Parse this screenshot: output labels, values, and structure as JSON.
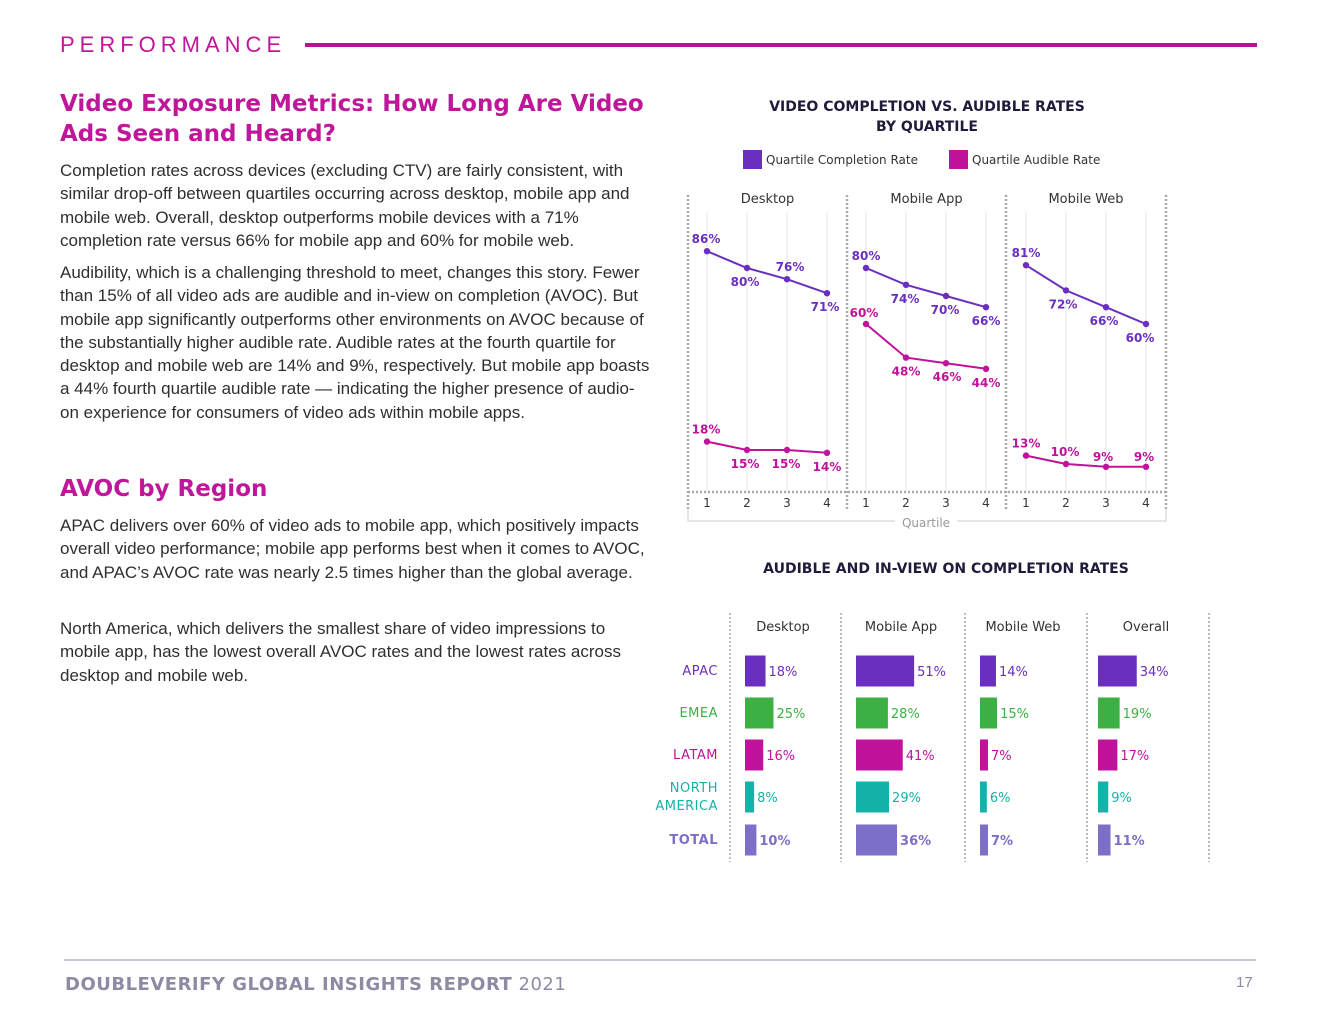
{
  "header": {
    "label": "PERFORMANCE"
  },
  "section1": {
    "title_line1": "Video Exposure Metrics: How Long Are Video",
    "title_line2": "Ads Seen and Heard?",
    "para1": "Completion rates across devices (excluding CTV) are fairly consistent, with similar drop-off between quartiles occurring across desktop, mobile app and mobile web. Overall, desktop outperforms mobile devices with a 71% completion rate versus 66% for mobile app and 60% for mobile web.",
    "para2": "Audibility, which is a challenging threshold to meet, changes this story. Fewer than 15% of all video ads are audible and in-view on completion (AVOC). But mobile app significantly outperforms other environments on AVOC because of the substantially higher audible rate. Audible rates at the fourth quartile for desktop and mobile web are 14% and 9%, respectively. But mobile app boasts a 44% fourth quartile audible rate — indicating the higher presence of audio-on experience for consumers of video ads within mobile apps."
  },
  "section2": {
    "title": "AVOC by Region",
    "para1": "APAC delivers over 60% of video ads to mobile app, which positively impacts overall video performance; mobile app performs best when it comes to AVOC, and APAC’s AVOC rate was nearly 2.5 times higher than the global average.",
    "para2": "North America, which delivers the smallest share of video impressions to mobile app, has the lowest overall AVOC rates and the lowest rates across desktop and mobile web."
  },
  "footer": {
    "title_bold": "DOUBLEVERIFY GLOBAL INSIGHTS REPORT",
    "year": " 2021",
    "page": "17"
  },
  "colors": {
    "completion": "#6a2fbf",
    "audible": "#c0129b",
    "emea": "#3cb043",
    "na": "#14b2a8",
    "total": "#7b6fc8"
  },
  "chart_data": [
    {
      "type": "line",
      "title_line1": "VIDEO COMPLETION VS. AUDIBLE RATES",
      "title_line2": "BY QUARTILE",
      "xlabel": "Quartile",
      "x": [
        "1",
        "2",
        "3",
        "4"
      ],
      "ylim": [
        0,
        100
      ],
      "legend": [
        "Quartile Completion Rate",
        "Quartile Audible Rate"
      ],
      "panels": [
        {
          "name": "Desktop",
          "series": [
            {
              "name": "Quartile Completion Rate",
              "values": [
                86,
                80,
                76,
                71
              ],
              "labels": [
                "86%",
                "80%",
                "76%",
                "71%"
              ]
            },
            {
              "name": "Quartile Audible Rate",
              "values": [
                18,
                15,
                15,
                14
              ],
              "labels": [
                "18%",
                "15%",
                "15%",
                "14%"
              ]
            }
          ]
        },
        {
          "name": "Mobile App",
          "series": [
            {
              "name": "Quartile Completion Rate",
              "values": [
                80,
                74,
                70,
                66
              ],
              "labels": [
                "80%",
                "74%",
                "70%",
                "66%"
              ]
            },
            {
              "name": "Quartile Audible Rate",
              "values": [
                60,
                48,
                46,
                44
              ],
              "labels": [
                "60%",
                "48%",
                "46%",
                "44%"
              ]
            }
          ]
        },
        {
          "name": "Mobile Web",
          "series": [
            {
              "name": "Quartile Completion Rate",
              "values": [
                81,
                72,
                66,
                60
              ],
              "labels": [
                "81%",
                "72%",
                "66%",
                "60%"
              ]
            },
            {
              "name": "Quartile Audible Rate",
              "values": [
                13,
                10,
                9,
                9
              ],
              "labels": [
                "13%",
                "10%",
                "9%",
                "9%"
              ]
            }
          ]
        }
      ]
    },
    {
      "type": "bar",
      "title": "AUDIBLE AND IN-VIEW ON COMPLETION RATES",
      "categories": [
        "APAC",
        "EMEA",
        "LATAM",
        "NORTH AMERICA",
        "TOTAL"
      ],
      "category_lines": [
        [
          "APAC"
        ],
        [
          "EMEA"
        ],
        [
          "LATAM"
        ],
        [
          "NORTH",
          "AMERICA"
        ],
        [
          "TOTAL"
        ]
      ],
      "series": [
        {
          "name": "Desktop",
          "values": [
            18,
            25,
            16,
            8,
            10
          ],
          "labels": [
            "18%",
            "25%",
            "16%",
            "8%",
            "10%"
          ]
        },
        {
          "name": "Mobile App",
          "values": [
            51,
            28,
            41,
            29,
            36
          ],
          "labels": [
            "51%",
            "28%",
            "41%",
            "29%",
            "36%"
          ]
        },
        {
          "name": "Mobile Web",
          "values": [
            14,
            15,
            7,
            6,
            7
          ],
          "labels": [
            "14%",
            "15%",
            "7%",
            "6%",
            "7%"
          ]
        },
        {
          "name": "Overall",
          "values": [
            34,
            19,
            17,
            9,
            11
          ],
          "labels": [
            "34%",
            "19%",
            "17%",
            "9%",
            "11%"
          ]
        }
      ]
    }
  ]
}
